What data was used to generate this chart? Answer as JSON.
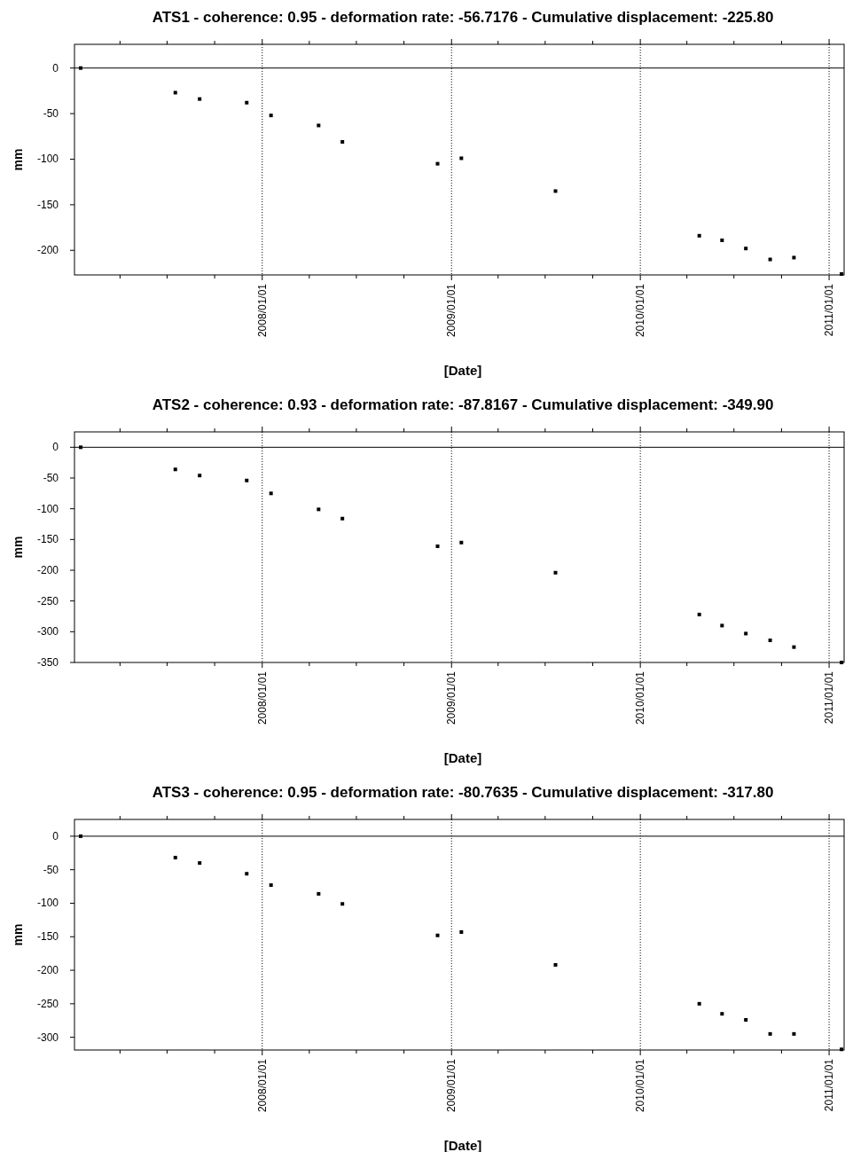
{
  "chart_data": [
    {
      "type": "scatter",
      "title": "ATS1 - coherence: 0.95 - deformation rate: -56.7176 - Cumulative displacement: -225.80",
      "xlabel": "[Date]",
      "ylabel": "mm",
      "x": [
        "2007-01-15",
        "2007-07-17",
        "2007-09-02",
        "2007-12-02",
        "2008-01-18",
        "2008-04-19",
        "2008-06-04",
        "2008-12-05",
        "2009-01-20",
        "2009-07-21",
        "2010-04-25",
        "2010-06-08",
        "2010-07-24",
        "2010-09-09",
        "2010-10-25",
        "2011-01-25"
      ],
      "series": [
        {
          "color": "#000000",
          "values": [
            0,
            -27,
            -34,
            -38,
            -52,
            -63,
            -81,
            -105,
            -99,
            -135,
            -184,
            -189,
            -198,
            -210,
            -208,
            -226
          ]
        }
      ],
      "marker": "square",
      "grid": "x",
      "xlim": [
        "2007-01-03",
        "2011-01-30"
      ],
      "ylim": [
        -227,
        26
      ],
      "yticks": [
        0,
        -50,
        -100,
        -150,
        -200
      ],
      "xticks": [
        {
          "value": "2007-04-01",
          "label": null
        },
        {
          "value": "2007-07-01",
          "label": null
        },
        {
          "value": "2007-10-01",
          "label": null
        },
        {
          "value": "2008-01-01",
          "label": "2008/01/01"
        },
        {
          "value": "2008-04-01",
          "label": null
        },
        {
          "value": "2008-07-01",
          "label": null
        },
        {
          "value": "2008-10-01",
          "label": null
        },
        {
          "value": "2009-01-01",
          "label": "2009/01/01"
        },
        {
          "value": "2009-04-01",
          "label": null
        },
        {
          "value": "2009-07-01",
          "label": null
        },
        {
          "value": "2009-10-01",
          "label": null
        },
        {
          "value": "2010-01-01",
          "label": "2010/01/01"
        },
        {
          "value": "2010-04-01",
          "label": null
        },
        {
          "value": "2010-07-01",
          "label": null
        },
        {
          "value": "2010-10-01",
          "label": null
        },
        {
          "value": "2011-01-01",
          "label": "2011/01/01"
        }
      ],
      "ref_lines": [
        {
          "axis": "y",
          "value": 0,
          "color": "#000000"
        }
      ]
    },
    {
      "type": "scatter",
      "title": "ATS2 - coherence: 0.93 - deformation rate: -87.8167 - Cumulative displacement: -349.90",
      "xlabel": "[Date]",
      "ylabel": "mm",
      "x": [
        "2007-01-15",
        "2007-07-17",
        "2007-09-02",
        "2007-12-02",
        "2008-01-18",
        "2008-04-19",
        "2008-06-04",
        "2008-12-05",
        "2009-01-20",
        "2009-07-21",
        "2010-04-25",
        "2010-06-08",
        "2010-07-24",
        "2010-09-09",
        "2010-10-25",
        "2011-01-25"
      ],
      "series": [
        {
          "color": "#000000",
          "values": [
            0,
            -36,
            -46,
            -54,
            -75,
            -101,
            -116,
            -161,
            -155,
            -204,
            -272,
            -290,
            -303,
            -314,
            -325,
            -350
          ]
        }
      ],
      "marker": "square",
      "grid": "x",
      "xlim": [
        "2007-01-03",
        "2011-01-30"
      ],
      "ylim": [
        -350,
        25
      ],
      "yticks": [
        0,
        -50,
        -100,
        -150,
        -200,
        -250,
        -300,
        -350
      ],
      "xticks": [
        {
          "value": "2007-04-01",
          "label": null
        },
        {
          "value": "2007-07-01",
          "label": null
        },
        {
          "value": "2007-10-01",
          "label": null
        },
        {
          "value": "2008-01-01",
          "label": "2008/01/01"
        },
        {
          "value": "2008-04-01",
          "label": null
        },
        {
          "value": "2008-07-01",
          "label": null
        },
        {
          "value": "2008-10-01",
          "label": null
        },
        {
          "value": "2009-01-01",
          "label": "2009/01/01"
        },
        {
          "value": "2009-04-01",
          "label": null
        },
        {
          "value": "2009-07-01",
          "label": null
        },
        {
          "value": "2009-10-01",
          "label": null
        },
        {
          "value": "2010-01-01",
          "label": "2010/01/01"
        },
        {
          "value": "2010-04-01",
          "label": null
        },
        {
          "value": "2010-07-01",
          "label": null
        },
        {
          "value": "2010-10-01",
          "label": null
        },
        {
          "value": "2011-01-01",
          "label": "2011/01/01"
        }
      ],
      "ref_lines": [
        {
          "axis": "y",
          "value": 0,
          "color": "#000000"
        }
      ]
    },
    {
      "type": "scatter",
      "title": "ATS3 - coherence: 0.95 - deformation rate: -80.7635 - Cumulative displacement: -317.80",
      "xlabel": "[Date]",
      "ylabel": "mm",
      "x": [
        "2007-01-15",
        "2007-07-17",
        "2007-09-02",
        "2007-12-02",
        "2008-01-18",
        "2008-04-19",
        "2008-06-04",
        "2008-12-05",
        "2009-01-20",
        "2009-07-21",
        "2010-04-25",
        "2010-06-08",
        "2010-07-24",
        "2010-09-09",
        "2010-10-25",
        "2011-01-25"
      ],
      "series": [
        {
          "color": "#000000",
          "values": [
            0,
            -32,
            -40,
            -56,
            -73,
            -86,
            -101,
            -148,
            -143,
            -192,
            -250,
            -265,
            -274,
            -295,
            -295,
            -318
          ]
        }
      ],
      "marker": "square",
      "grid": "x",
      "xlim": [
        "2007-01-03",
        "2011-01-30"
      ],
      "ylim": [
        -319,
        25
      ],
      "yticks": [
        0,
        -50,
        -100,
        -150,
        -200,
        -250,
        -300
      ],
      "xticks": [
        {
          "value": "2007-04-01",
          "label": null
        },
        {
          "value": "2007-07-01",
          "label": null
        },
        {
          "value": "2007-10-01",
          "label": null
        },
        {
          "value": "2008-01-01",
          "label": "2008/01/01"
        },
        {
          "value": "2008-04-01",
          "label": null
        },
        {
          "value": "2008-07-01",
          "label": null
        },
        {
          "value": "2008-10-01",
          "label": null
        },
        {
          "value": "2009-01-01",
          "label": "2009/01/01"
        },
        {
          "value": "2009-04-01",
          "label": null
        },
        {
          "value": "2009-07-01",
          "label": null
        },
        {
          "value": "2009-10-01",
          "label": null
        },
        {
          "value": "2010-01-01",
          "label": "2010/01/01"
        },
        {
          "value": "2010-04-01",
          "label": null
        },
        {
          "value": "2010-07-01",
          "label": null
        },
        {
          "value": "2010-10-01",
          "label": null
        },
        {
          "value": "2011-01-01",
          "label": "2011/01/01"
        }
      ],
      "ref_lines": [
        {
          "axis": "y",
          "value": 0,
          "color": "#000000"
        }
      ]
    }
  ]
}
